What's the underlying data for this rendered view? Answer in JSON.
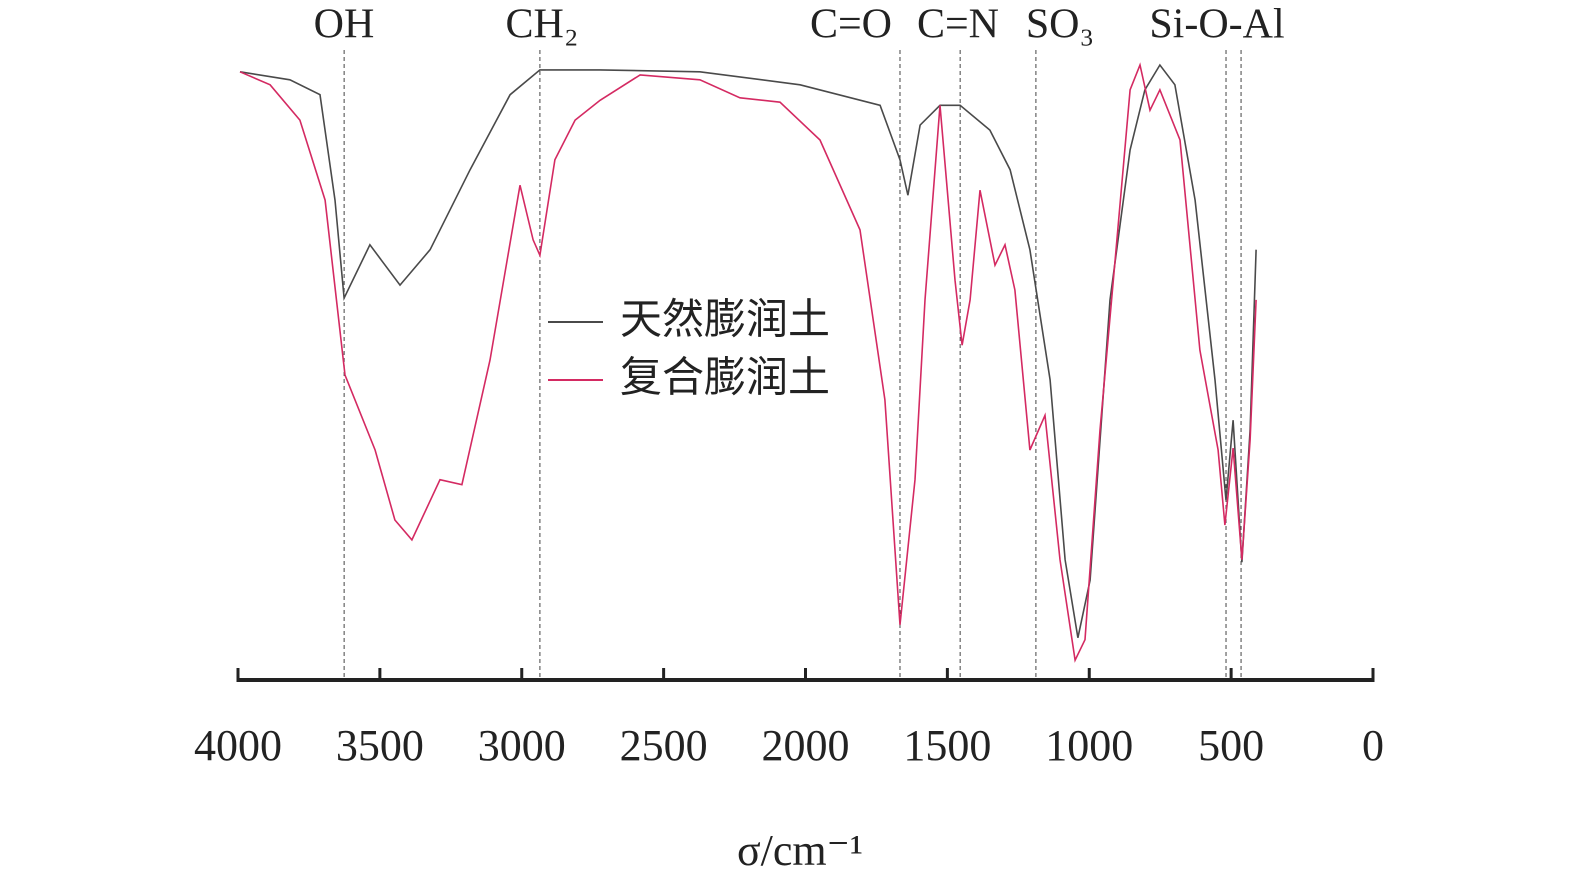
{
  "chart_data": {
    "type": "line",
    "xlabel": "σ/cm⁻¹",
    "xlim": [
      4000,
      0
    ],
    "xticks": [
      4000,
      3500,
      3000,
      2500,
      2000,
      1500,
      1000,
      500,
      0
    ],
    "ylim": [
      0,
      100
    ],
    "legend": "center",
    "annotations": [
      {
        "label": "OH",
        "x": 3626
      },
      {
        "label": "CH₂",
        "x": 2936
      },
      {
        "label": "C=O",
        "x": 1667
      },
      {
        "label": "C=N",
        "x": 1455
      },
      {
        "label": "SO₃",
        "x": 1188
      },
      {
        "label": "Si-O-Al",
        "x": 518
      },
      {
        "x": 465
      }
    ],
    "series": [
      {
        "name": "天然膨润土",
        "color": "#4a4a4a",
        "x": [
          3993,
          3817,
          3711,
          3658,
          3626,
          3535,
          3429,
          3323,
          3182,
          3041,
          2936,
          2724,
          2372,
          2019,
          1737,
          1667,
          1639,
          1596,
          1526,
          1455,
          1350,
          1279,
          1209,
          1138,
          1085,
          1040,
          997,
          927,
          856,
          804,
          751,
          698,
          627,
          557,
          518,
          493,
          462,
          433,
          412
        ],
        "values": [
          98.1,
          96.8,
          94.4,
          77.4,
          61.6,
          70.2,
          63.7,
          69.4,
          82.3,
          94.4,
          98.4,
          98.4,
          98.1,
          96.0,
          92.7,
          83.9,
          78.2,
          89.5,
          92.7,
          92.7,
          88.7,
          82.3,
          69.4,
          48.4,
          19.4,
          6.8,
          16.1,
          61.3,
          85.5,
          95.2,
          99.2,
          96.0,
          77.4,
          48.4,
          29.0,
          41.9,
          19.0,
          40.3,
          69.4
        ]
      },
      {
        "name": "复合膨润土",
        "color": "#d42a62",
        "x": [
          3993,
          3887,
          3782,
          3693,
          3623,
          3517,
          3447,
          3387,
          3288,
          3211,
          3112,
          3006,
          2960,
          2936,
          2883,
          2812,
          2724,
          2583,
          2372,
          2231,
          2090,
          1949,
          1808,
          1720,
          1667,
          1614,
          1579,
          1526,
          1473,
          1448,
          1420,
          1385,
          1332,
          1297,
          1262,
          1209,
          1156,
          1103,
          1050,
          1015,
          962,
          909,
          856,
          821,
          786,
          751,
          680,
          610,
          546,
          522,
          493,
          462,
          433,
          412
        ],
        "values": [
          98.1,
          96.0,
          90.3,
          77.4,
          49.2,
          37.1,
          25.8,
          22.6,
          32.3,
          31.5,
          51.6,
          79.8,
          71.0,
          68.5,
          83.9,
          90.3,
          93.5,
          97.6,
          96.8,
          93.9,
          93.2,
          87.1,
          72.6,
          45.2,
          8.9,
          32.3,
          61.3,
          92.7,
          64.5,
          54.0,
          61.3,
          79.0,
          66.9,
          70.2,
          62.9,
          37.1,
          42.7,
          19.4,
          3.2,
          6.5,
          40.3,
          67.7,
          95.2,
          99.2,
          91.9,
          95.2,
          87.1,
          53.2,
          37.1,
          25.0,
          37.4,
          19.4,
          38.7,
          61.3
        ]
      }
    ]
  }
}
